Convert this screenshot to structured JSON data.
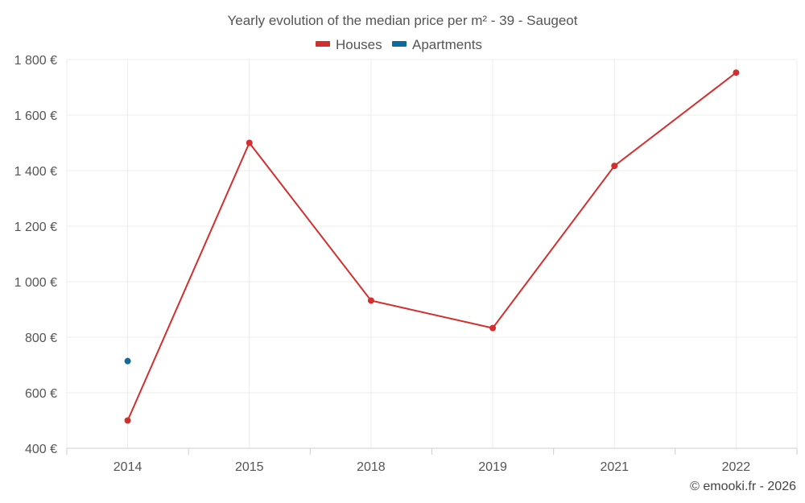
{
  "chart_data": {
    "type": "line",
    "title": "Yearly evolution of the median price per m² - 39 - Saugeot",
    "categories": [
      "2014",
      "2015",
      "2018",
      "2019",
      "2021",
      "2022"
    ],
    "series": [
      {
        "name": "Houses",
        "color": "#d32f2f",
        "values": [
          500,
          1500,
          932,
          833,
          1417,
          1753
        ]
      },
      {
        "name": "Apartments",
        "color": "#0d6b9e",
        "values": [
          714,
          null,
          null,
          null,
          null,
          null
        ]
      }
    ],
    "ylim": [
      400,
      1800
    ],
    "yticks": [
      400,
      600,
      800,
      1000,
      1200,
      1400,
      1600,
      1800
    ],
    "ytick_labels": [
      "400 €",
      "600 €",
      "800 €",
      "1 000 €",
      "1 200 €",
      "1 400 €",
      "1 600 €",
      "1 800 €"
    ],
    "legend_position": "top-center",
    "grid": true
  },
  "credit": "© emooki.fr - 2026"
}
